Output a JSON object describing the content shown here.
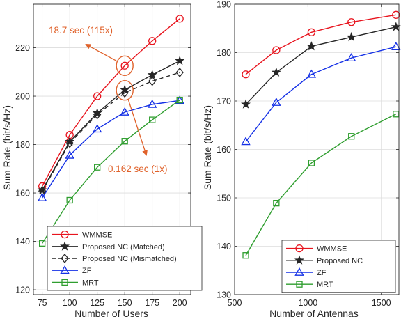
{
  "chart_data": [
    {
      "type": "line",
      "xlabel": "Number of Users",
      "ylabel": "Sum Rate (bit/s/Hz)",
      "xlim": [
        67,
        210
      ],
      "ylim": [
        118,
        238
      ],
      "xticks": [
        75,
        100,
        125,
        150,
        175,
        200
      ],
      "yticks": [
        120,
        140,
        160,
        180,
        200,
        220
      ],
      "grid": true,
      "legend_position": "bottom-right",
      "series": [
        {
          "name": "WMMSE",
          "marker": "circle",
          "color": "#e8141e",
          "dashed": false,
          "x": [
            75,
            100,
            125,
            150,
            175,
            200
          ],
          "y": [
            162.8,
            184.0,
            200.0,
            212.6,
            222.8,
            232.0
          ]
        },
        {
          "name": "Proposed NC (Matched)",
          "marker": "star",
          "color": "#262626",
          "dashed": false,
          "x": [
            75,
            100,
            125,
            150,
            175,
            200
          ],
          "y": [
            161.2,
            181.2,
            193.0,
            202.6,
            208.8,
            214.6
          ]
        },
        {
          "name": "Proposed NC (Mismatched)",
          "marker": "diamond",
          "color": "#262626",
          "dashed": true,
          "x": [
            75,
            100,
            125,
            150,
            175,
            200
          ],
          "y": [
            160.8,
            180.6,
            192.4,
            201.4,
            206.2,
            209.8
          ]
        },
        {
          "name": "ZF",
          "marker": "triangle",
          "color": "#1430e6",
          "dashed": false,
          "x": [
            75,
            100,
            125,
            150,
            175,
            200
          ],
          "y": [
            158.0,
            175.6,
            186.4,
            193.4,
            196.6,
            198.2
          ]
        },
        {
          "name": "MRT",
          "marker": "square",
          "color": "#2f9e2f",
          "dashed": false,
          "x": [
            75,
            100,
            125,
            150,
            175,
            200
          ],
          "y": [
            139.2,
            157.0,
            170.6,
            181.4,
            190.2,
            198.4
          ]
        }
      ],
      "annotations": [
        {
          "text": "18.7 sec (115x)",
          "target_x": 150,
          "target_y": 212.6
        },
        {
          "text": "0.162 sec (1x)",
          "target_x": 150,
          "target_y": 202.4
        }
      ]
    },
    {
      "type": "line",
      "xlabel": "Number of Antennas",
      "ylabel": "Sum Rate (bit/s/Hz)",
      "xlim": [
        500,
        1620
      ],
      "ylim": [
        130,
        190
      ],
      "xticks": [
        500,
        1000,
        1500
      ],
      "yticks": [
        130,
        140,
        150,
        160,
        170,
        180,
        190
      ],
      "grid": true,
      "legend_position": "bottom-right",
      "series": [
        {
          "name": "WMMSE",
          "marker": "circle",
          "color": "#e8141e",
          "dashed": false,
          "x": [
            576,
            784,
            1024,
            1296,
            1600
          ],
          "y": [
            175.5,
            180.5,
            184.2,
            186.3,
            187.8
          ]
        },
        {
          "name": "Proposed NC",
          "marker": "star",
          "color": "#262626",
          "dashed": false,
          "x": [
            576,
            784,
            1024,
            1296,
            1600
          ],
          "y": [
            169.3,
            175.9,
            181.3,
            183.2,
            185.3
          ]
        },
        {
          "name": "ZF",
          "marker": "triangle",
          "color": "#1430e6",
          "dashed": false,
          "x": [
            576,
            784,
            1024,
            1296,
            1600
          ],
          "y": [
            161.6,
            169.7,
            175.5,
            178.9,
            181.2
          ]
        },
        {
          "name": "MRT",
          "marker": "square",
          "color": "#2f9e2f",
          "dashed": false,
          "x": [
            576,
            784,
            1024,
            1296,
            1600
          ],
          "y": [
            138.1,
            148.9,
            157.2,
            162.7,
            167.3
          ]
        }
      ]
    }
  ],
  "colors": {
    "annotation": "#e0622b",
    "grid": "#dcdcdc",
    "axis": "#262626"
  }
}
